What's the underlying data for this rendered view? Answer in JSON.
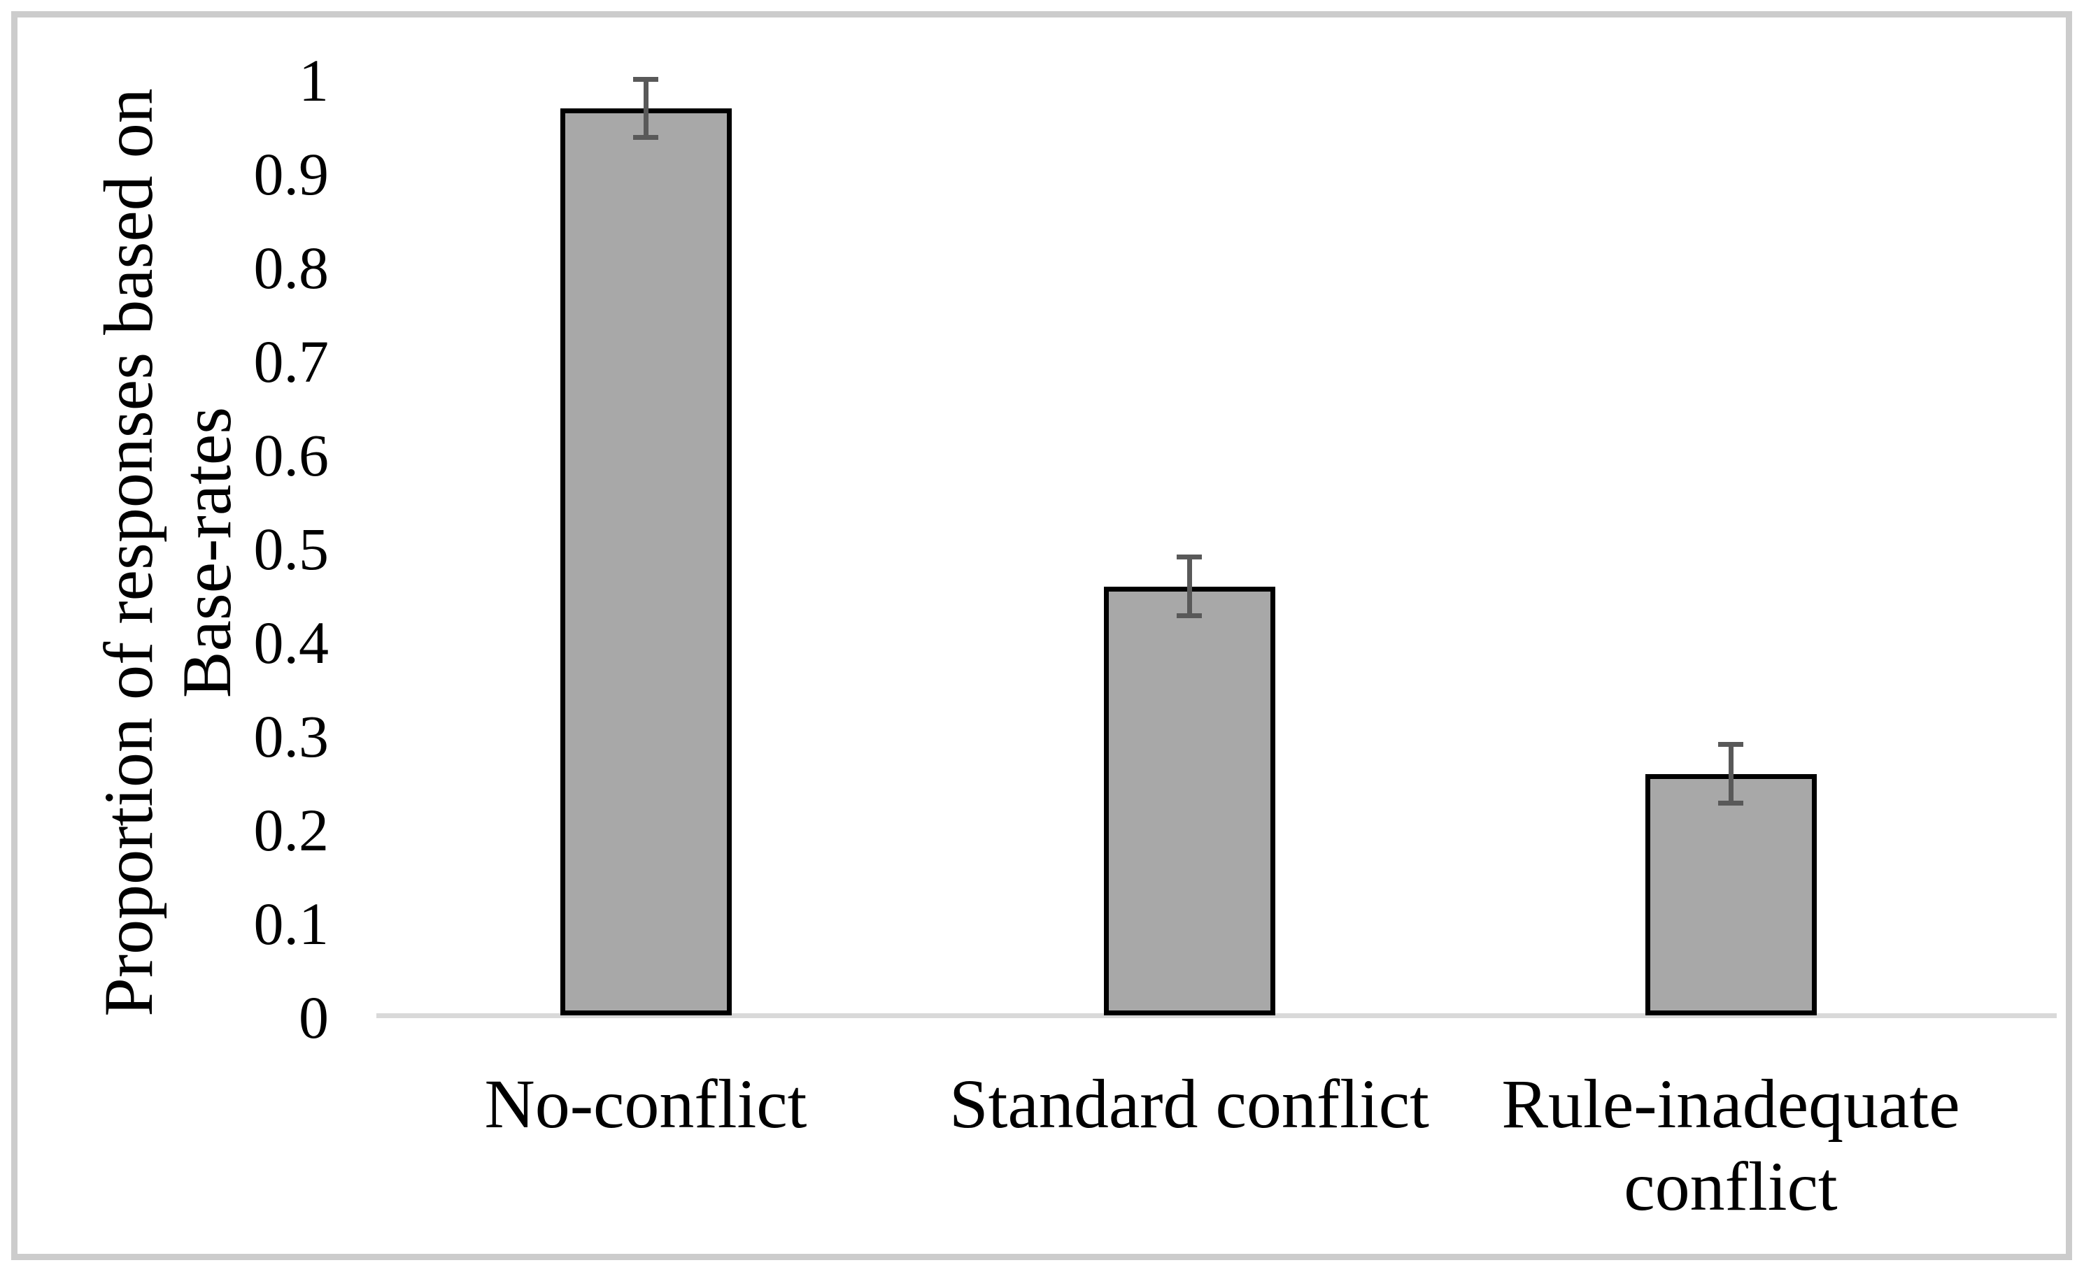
{
  "figure": {
    "background": "#ffffff",
    "border_color": "#cccccc"
  },
  "chart_data": {
    "type": "bar",
    "title": "",
    "categories": [
      "No-conflict",
      "Standard conflict",
      "Rule-inadequate conflict"
    ],
    "categories_lines": [
      [
        "No-conflict"
      ],
      [
        "Standard conflict"
      ],
      [
        "Rule-inadequate",
        "conflict"
      ]
    ],
    "values": [
      0.97,
      0.46,
      0.26
    ],
    "error_bars": [
      0.03,
      0.03,
      0.03
    ],
    "ylabel": "Proportion of responses based on Base-rates",
    "ylabel_lines": [
      "Proportion of responses based on",
      "Base-rates"
    ],
    "xlabel": "",
    "ytick_labels": [
      "1",
      "0.9",
      "0.8",
      "0.7",
      "0.6",
      "0.5",
      "0.4",
      "0.3",
      "0.2",
      "0.1",
      "0"
    ],
    "ytick_values": [
      1,
      0.9,
      0.8,
      0.7,
      0.6,
      0.5,
      0.4,
      0.3,
      0.2,
      0.1,
      0
    ],
    "ylim": [
      0,
      1
    ],
    "grid": false,
    "legend": false,
    "bar_fill": "#a8a8a8",
    "bar_border_color": "#000000",
    "error_color": "#595959",
    "axis_line_color": "#d9d9d9"
  }
}
